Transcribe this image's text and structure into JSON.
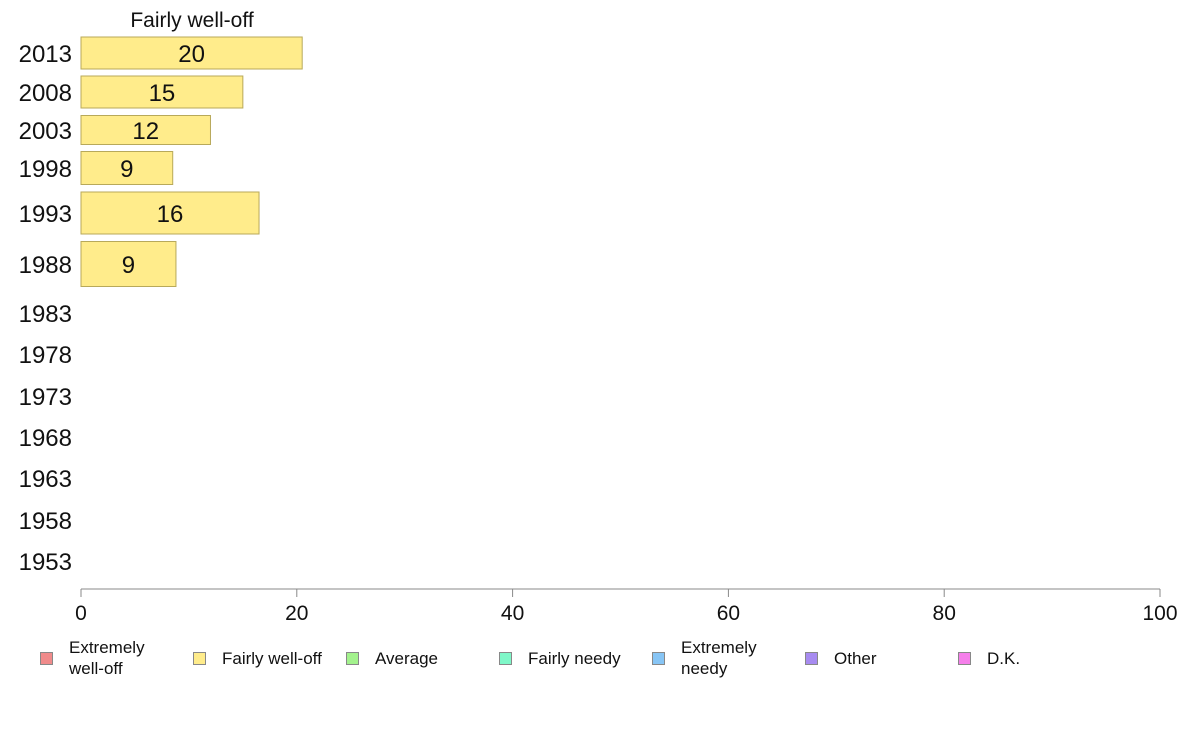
{
  "chart_data": {
    "type": "bar",
    "orientation": "horizontal",
    "title": "Fairly well-off",
    "categories": [
      "2013",
      "2008",
      "2003",
      "1998",
      "1993",
      "1988",
      "1983",
      "1978",
      "1973",
      "1968",
      "1963",
      "1958",
      "1953"
    ],
    "series": [
      {
        "name": "Fairly well-off",
        "values": [
          20.5,
          15,
          12,
          8.5,
          16.5,
          8.8,
          null,
          null,
          null,
          null,
          null,
          null,
          null
        ]
      }
    ],
    "data_labels": [
      "20",
      "15",
      "12",
      "9",
      "16",
      "9",
      "",
      "",
      "",
      "",
      "",
      "",
      ""
    ],
    "xlim": [
      0,
      100
    ],
    "xticks": [
      0,
      20,
      40,
      60,
      80,
      100
    ],
    "grid": false,
    "legend_position": "bottom"
  },
  "legend": [
    {
      "label": "Extremely well-off",
      "color": "#f08b8b"
    },
    {
      "label": "Fairly well-off",
      "color": "#ffec8b"
    },
    {
      "label": "Average",
      "color": "#a3f28d"
    },
    {
      "label": "Fairly needy",
      "color": "#7ff7c8"
    },
    {
      "label": "Extremely needy",
      "color": "#87c5f5"
    },
    {
      "label": "Other",
      "color": "#a78bf0"
    },
    {
      "label": "D.K.",
      "color": "#f57fea"
    }
  ],
  "colors": {
    "bar_fill": "#ffec8b",
    "bar_stroke": "#b8a95a",
    "axis": "#888888",
    "text": "#111111"
  }
}
